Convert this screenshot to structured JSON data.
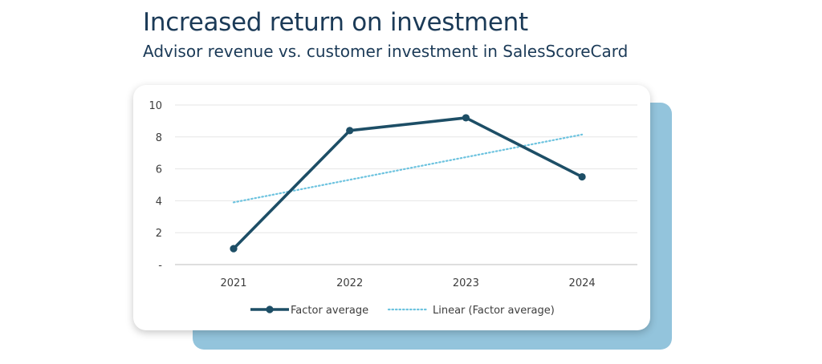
{
  "header": {
    "title": "Increased return on investment",
    "subtitle": "Advisor revenue vs. customer investment in SalesScoreCard"
  },
  "colors": {
    "series_line": "#1d4e66",
    "trend_line": "#6dc3df",
    "shadow_card": "#93c4dc",
    "title_text": "#1b3a57"
  },
  "chart_data": {
    "type": "line",
    "categories": [
      "2021",
      "2022",
      "2023",
      "2024"
    ],
    "series": [
      {
        "name": "Factor average",
        "values": [
          1.0,
          8.4,
          9.2,
          5.5
        ]
      }
    ],
    "trendline": {
      "name": "Linear (Factor average)",
      "type": "linear",
      "values": [
        3.9,
        5.35,
        6.75,
        8.15
      ]
    },
    "y_tick_labels": [
      "-",
      "2",
      "4",
      "6",
      "8",
      "10"
    ],
    "ylim": [
      0,
      10
    ],
    "grid": true,
    "legend": "bottom"
  }
}
